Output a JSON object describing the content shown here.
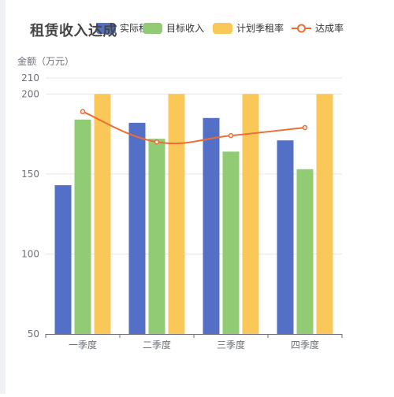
{
  "chart_data": {
    "type": "bar",
    "title": "租赁收入达成",
    "ylabel": "金额（万元）",
    "categories": [
      "一季度",
      "二季度",
      "三季度",
      "四季度"
    ],
    "ylim": [
      50,
      210
    ],
    "yticks": [
      50,
      100,
      150,
      200,
      210
    ],
    "series": [
      {
        "name": "实际租率",
        "type": "bar",
        "color": "#5470c6",
        "values": [
          143,
          182,
          185,
          171
        ]
      },
      {
        "name": "目标收入",
        "type": "bar",
        "color": "#91cc75",
        "values": [
          184,
          172,
          164,
          153
        ]
      },
      {
        "name": "计划季租率",
        "type": "bar",
        "color": "#fac858",
        "values": [
          200,
          200,
          200,
          200
        ]
      },
      {
        "name": "达成率",
        "type": "line",
        "color": "#ee6b33",
        "smooth": true,
        "values": [
          189,
          170,
          174,
          179
        ]
      }
    ],
    "legend_position": "top",
    "grid": true
  }
}
